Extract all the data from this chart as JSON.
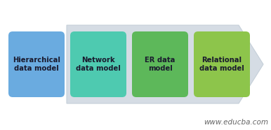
{
  "background_color": "#ffffff",
  "arrow_color": "#d5dce4",
  "arrow_edge_color": "#c5cfd9",
  "box_colors": [
    "#6aabe0",
    "#4ecab0",
    "#5db85a",
    "#8dc54b"
  ],
  "text_color": "#1a1a2e",
  "labels": [
    "Hierarchical\ndata model",
    "Network\ndata model",
    "ER data\nmodel",
    "Relational\ndata model"
  ],
  "watermark": "www.educba.com",
  "watermark_color": "#666666",
  "watermark_fontsize": 7.5,
  "figw": 3.86,
  "figh": 1.86,
  "dpi": 100
}
